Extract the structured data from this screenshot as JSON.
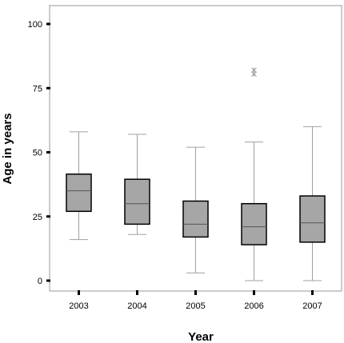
{
  "chart_data": {
    "type": "box",
    "title": "",
    "xlabel": "Year",
    "ylabel": "Age in years",
    "ylim": [
      -3,
      108
    ],
    "yticks": [
      0,
      25,
      50,
      75,
      100
    ],
    "categories": [
      "2003",
      "2004",
      "2005",
      "2006",
      "2007"
    ],
    "boxes": [
      {
        "category": "2003",
        "min": 16,
        "q1": 27,
        "median": 35,
        "q3": 41.5,
        "max": 58,
        "outliers": []
      },
      {
        "category": "2004",
        "min": 18,
        "q1": 22,
        "median": 30,
        "q3": 39.5,
        "max": 57,
        "outliers": []
      },
      {
        "category": "2005",
        "min": 3,
        "q1": 17,
        "median": 22,
        "q3": 31,
        "max": 52,
        "outliers": []
      },
      {
        "category": "2006",
        "min": 0,
        "q1": 14,
        "median": 21,
        "q3": 30,
        "max": 54,
        "outliers": [
          80.5,
          82
        ]
      },
      {
        "category": "2007",
        "min": 0,
        "q1": 15,
        "median": 22.5,
        "q3": 33,
        "max": 60,
        "outliers": []
      }
    ],
    "box_color": "#a6a6a6",
    "whisker_color": "#a0a0a0",
    "outlier_color": "#999999",
    "grid": false,
    "legend": "none"
  }
}
